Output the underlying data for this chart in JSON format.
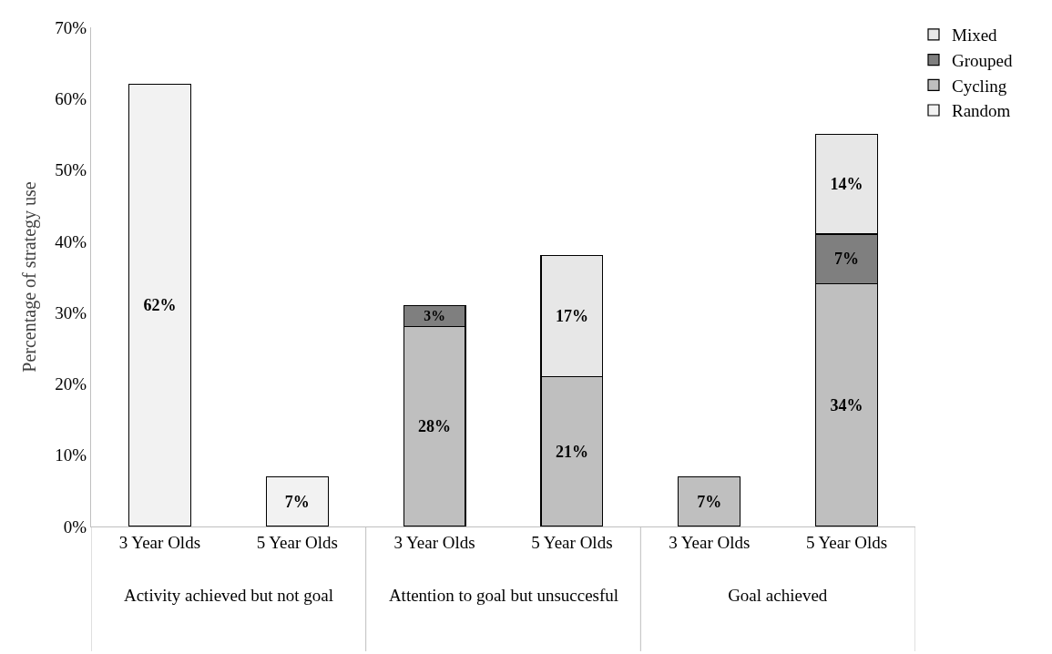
{
  "chart_data": {
    "type": "bar",
    "stacked": true,
    "ylabel": "Percentage of strategy use",
    "categories": [
      "3 Year Olds",
      "5 Year Olds",
      "3 Year Olds",
      "5 Year Olds",
      "3 Year Olds",
      "5 Year Olds"
    ],
    "series": [
      {
        "name": "Random",
        "color": "#f2f2f2",
        "values": [
          62,
          7,
          null,
          null,
          null,
          null
        ],
        "value_labels": [
          "62%",
          "7%",
          null,
          null,
          null,
          null
        ]
      },
      {
        "name": "Cycling",
        "color": "#bfbfbf",
        "values": [
          null,
          null,
          28,
          21,
          7,
          34
        ],
        "value_labels": [
          null,
          null,
          "28%",
          "21%",
          "7%",
          "34%"
        ]
      },
      {
        "name": "Grouped",
        "color": "#7f7f7f",
        "values": [
          null,
          null,
          3,
          null,
          null,
          7
        ],
        "value_labels": [
          null,
          null,
          "3%",
          null,
          null,
          "7%"
        ]
      },
      {
        "name": "Mixed",
        "color": "#e7e7e7",
        "values": [
          null,
          null,
          null,
          17,
          null,
          14
        ],
        "value_labels": [
          null,
          null,
          null,
          "17%",
          null,
          "14%"
        ]
      }
    ],
    "annotations": [
      "Activity achieved but not goal",
      "Attention to goal but unsuccesful",
      "Goal achieved"
    ],
    "ylim": [
      0,
      70
    ],
    "yticks": [
      {
        "value": 0,
        "label": "0%"
      },
      {
        "value": 10,
        "label": "10%"
      },
      {
        "value": 20,
        "label": "20%"
      },
      {
        "value": 30,
        "label": "30%"
      },
      {
        "value": 40,
        "label": "40%"
      },
      {
        "value": 50,
        "label": "50%"
      },
      {
        "value": 60,
        "label": "60%"
      },
      {
        "value": 70,
        "label": "70%"
      }
    ],
    "legend": "top right"
  }
}
